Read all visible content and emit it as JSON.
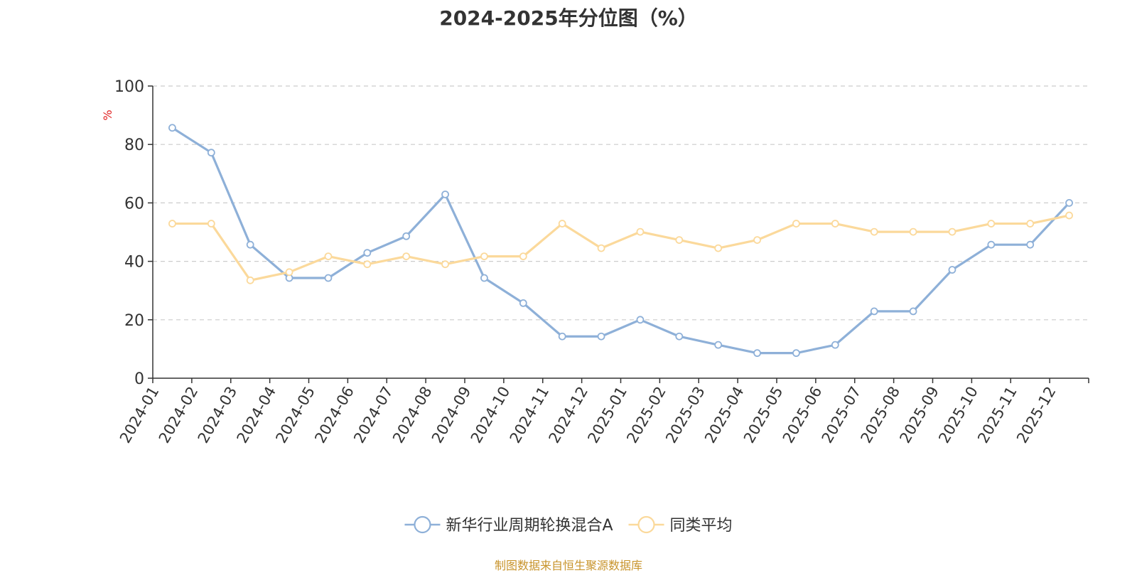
{
  "title": "2024-2025年分位图（%）",
  "source": "制图数据来自恒生聚源数据库",
  "colors": {
    "series_a": "#8eb0d8",
    "series_b": "#fbd99b",
    "unit": "#e02020",
    "source": "#c8942c",
    "grid": "#cccccc",
    "axis": "#333333"
  },
  "chart_data": {
    "type": "line",
    "title": "2024-2025年分位图（%）",
    "ylabel": "%",
    "ylim": [
      0,
      100
    ],
    "yticks": [
      0,
      20,
      40,
      60,
      80,
      100
    ],
    "grid": "horizontal dashed",
    "legend_position": "bottom-center",
    "categories": [
      "2024-01",
      "2024-02",
      "2024-03",
      "2024-04",
      "2024-05",
      "2024-06",
      "2024-07",
      "2024-08",
      "2024-09",
      "2024-10",
      "2024-11",
      "2024-12",
      "2025-01",
      "2025-02",
      "2025-03",
      "2025-04",
      "2025-05",
      "2025-06",
      "2025-07",
      "2025-08",
      "2025-09",
      "2025-10",
      "2025-11",
      "2025-12"
    ],
    "series": [
      {
        "name": "新华行业周期轮换混合A",
        "color": "#8eb0d8",
        "values": [
          85.7,
          77.2,
          45.7,
          34.3,
          34.3,
          42.9,
          48.6,
          62.9,
          34.3,
          25.7,
          14.3,
          14.3,
          20.0,
          14.3,
          11.4,
          8.6,
          8.6,
          11.4,
          22.9,
          22.9,
          37.1,
          45.7,
          45.7,
          60.0
        ]
      },
      {
        "name": "同类平均",
        "color": "#fbd99b",
        "values": [
          52.9,
          52.9,
          33.5,
          36.3,
          41.7,
          39.0,
          41.7,
          39.0,
          41.7,
          41.7,
          52.9,
          44.5,
          50.1,
          47.3,
          44.5,
          47.3,
          52.9,
          52.9,
          50.1,
          50.1,
          50.1,
          52.9,
          52.9,
          55.7
        ]
      }
    ]
  }
}
